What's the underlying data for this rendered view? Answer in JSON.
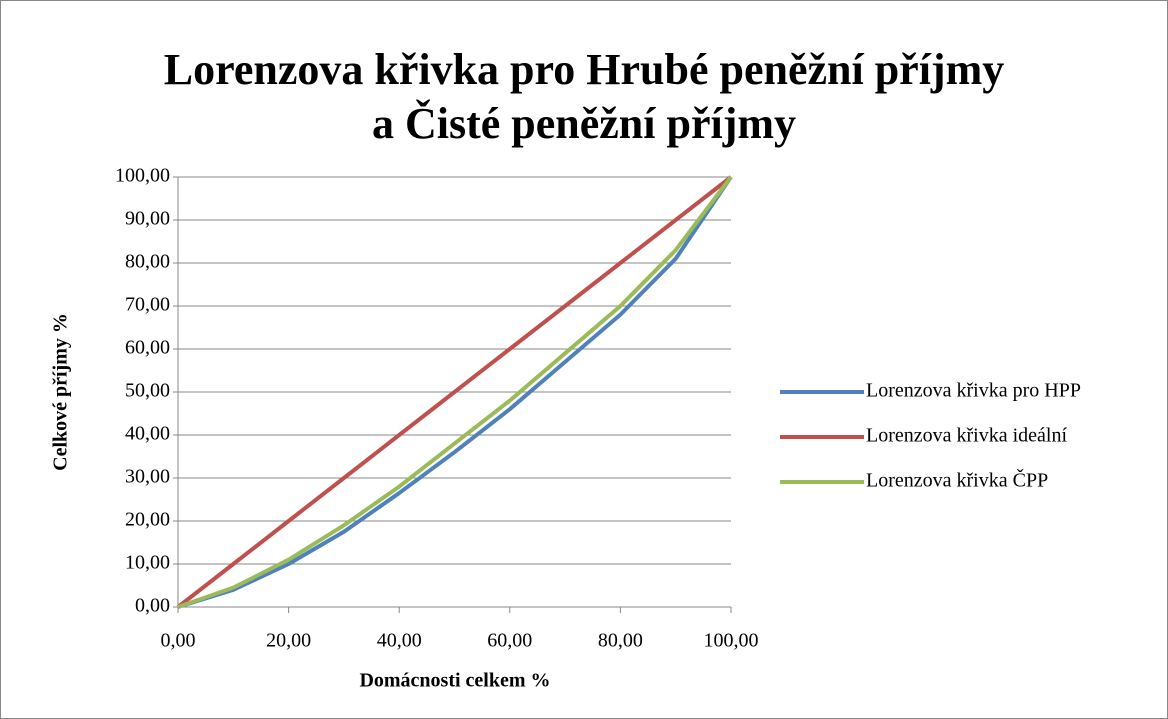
{
  "chart_data": {
    "type": "line",
    "title": [
      "Lorenzova křivka pro Hrubé peněžní příjmy",
      "a Čisté peněžní příjmy"
    ],
    "x_label": "Domácnosti celkem %",
    "y_label": "Celkové příjmy %",
    "x": [
      0,
      10,
      20,
      30,
      40,
      50,
      60,
      70,
      80,
      90,
      100
    ],
    "series": [
      {
        "name": "Lorenzova křivka pro HPP",
        "color": "#4f81bd",
        "values": [
          0,
          4,
          10,
          17.5,
          26.5,
          36,
          46,
          57,
          68,
          81,
          100
        ]
      },
      {
        "name": "Lorenzova křivka ideální",
        "color": "#c0504d",
        "values": [
          0,
          10,
          20,
          30,
          40,
          50,
          60,
          70,
          80,
          90,
          100
        ]
      },
      {
        "name": "Lorenzova křivka ČPP",
        "color": "#9bbb59",
        "values": [
          0,
          4.5,
          11,
          19,
          28,
          38,
          48,
          59,
          70,
          83,
          100
        ]
      }
    ],
    "xlim": [
      0,
      100
    ],
    "xticks": [
      {
        "value": 0,
        "label": "0,00"
      },
      {
        "value": 20,
        "label": "20,00"
      },
      {
        "value": 40,
        "label": "40,00"
      },
      {
        "value": 60,
        "label": "60,00"
      },
      {
        "value": 80,
        "label": "80,00"
      },
      {
        "value": 100,
        "label": "100,00"
      }
    ],
    "ylim": [
      0,
      100
    ],
    "yticks": [
      {
        "value": 0,
        "label": "0,00"
      },
      {
        "value": 10,
        "label": "10,00"
      },
      {
        "value": 20,
        "label": "20,00"
      },
      {
        "value": 30,
        "label": "30,00"
      },
      {
        "value": 40,
        "label": "40,00"
      },
      {
        "value": 50,
        "label": "50,00"
      },
      {
        "value": 60,
        "label": "60,00"
      },
      {
        "value": 70,
        "label": "70,00"
      },
      {
        "value": 80,
        "label": "80,00"
      },
      {
        "value": 90,
        "label": "90,00"
      },
      {
        "value": 100,
        "label": "100,00"
      }
    ],
    "grid": true,
    "legend": "right"
  }
}
